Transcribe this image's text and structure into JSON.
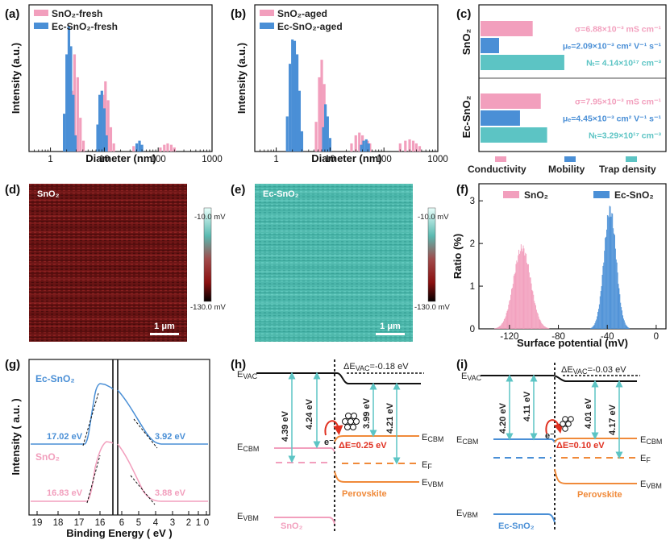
{
  "panels": {
    "a": {
      "letter": "(a)"
    },
    "b": {
      "letter": "(b)"
    },
    "c": {
      "letter": "(c)"
    },
    "d": {
      "letter": "(d)",
      "label": "SnO₂",
      "cbar_top": "-10.0 mV",
      "cbar_bottom": "-130.0 mV",
      "scalebar": "1 μm"
    },
    "e": {
      "letter": "(e)",
      "label": "Ec-SnO₂",
      "cbar_top": "-10.0 mV",
      "cbar_bottom": "-130.0 mV",
      "scalebar": "1 μm"
    },
    "f": {
      "letter": "(f)"
    },
    "g": {
      "letter": "(g)"
    },
    "h": {
      "letter": "(h)"
    },
    "i": {
      "letter": "(i)"
    }
  },
  "colors": {
    "pink": "#f29fbd",
    "blue": "#4a8fd6",
    "teal": "#5cc4c4",
    "orange": "#f08a3a",
    "black": "#111111"
  },
  "chart_data": [
    {
      "id": "a",
      "type": "bar",
      "xlabel": "Diameter (nm)",
      "ylabel": "Intensity (a.u.)",
      "xscale": "log",
      "xlim": [
        0.4,
        1000
      ],
      "xticks": [
        "1",
        "10",
        "100",
        "1000"
      ],
      "series": [
        {
          "name": "SnO₂-fresh",
          "color": "#f29fbd",
          "points": [
            [
              2.2,
              0.12
            ],
            [
              2.5,
              0.45
            ],
            [
              2.8,
              0.72
            ],
            [
              3.2,
              0.55
            ],
            [
              3.6,
              0.25
            ],
            [
              4.1,
              0.08
            ],
            [
              8.5,
              0.12
            ],
            [
              9.5,
              0.42
            ],
            [
              10.5,
              0.52
            ],
            [
              11.8,
              0.38
            ],
            [
              13.2,
              0.18
            ],
            [
              15,
              0.06
            ],
            [
              35,
              0.04
            ],
            [
              110,
              0.03
            ],
            [
              130,
              0.05
            ],
            [
              150,
              0.06
            ],
            [
              175,
              0.05
            ],
            [
              200,
              0.03
            ]
          ]
        },
        {
          "name": "Ec-SnO₂-fresh",
          "color": "#4a8fd6",
          "points": [
            [
              1.8,
              0.28
            ],
            [
              2.0,
              0.72
            ],
            [
              2.2,
              0.93
            ],
            [
              2.4,
              0.78
            ],
            [
              2.65,
              0.42
            ],
            [
              2.9,
              0.12
            ],
            [
              7.5,
              0.2
            ],
            [
              8.2,
              0.42
            ],
            [
              9.0,
              0.45
            ],
            [
              10,
              0.32
            ],
            [
              11,
              0.12
            ],
            [
              40,
              0.06
            ],
            [
              45,
              0.08
            ],
            [
              50,
              0.05
            ]
          ]
        }
      ]
    },
    {
      "id": "b",
      "type": "bar",
      "xlabel": "Diameter (nm)",
      "ylabel": "Intensity (a.u.)",
      "xscale": "log",
      "xlim": [
        0.4,
        1000
      ],
      "xticks": [
        "1",
        "10",
        "100",
        "1000"
      ],
      "series": [
        {
          "name": "SnO₂-aged",
          "color": "#f29fbd",
          "points": [
            [
              5.5,
              0.22
            ],
            [
              6.3,
              0.55
            ],
            [
              7.0,
              0.68
            ],
            [
              7.8,
              0.5
            ],
            [
              8.8,
              0.22
            ],
            [
              10,
              0.06
            ],
            [
              25,
              0.06
            ],
            [
              30,
              0.12
            ],
            [
              35,
              0.14
            ],
            [
              40,
              0.12
            ],
            [
              50,
              0.08
            ],
            [
              55,
              0.06
            ],
            [
              200,
              0.06
            ],
            [
              250,
              0.08
            ],
            [
              300,
              0.09
            ],
            [
              350,
              0.08
            ],
            [
              400,
              0.06
            ],
            [
              460,
              0.04
            ]
          ]
        },
        {
          "name": "Ec-SnO₂-aged",
          "color": "#4a8fd6",
          "points": [
            [
              1.6,
              0.26
            ],
            [
              1.8,
              0.65
            ],
            [
              2.0,
              0.83
            ],
            [
              2.2,
              0.82
            ],
            [
              2.45,
              0.72
            ],
            [
              2.7,
              0.45
            ],
            [
              3.0,
              0.15
            ],
            [
              7.5,
              0.18
            ],
            [
              8.2,
              0.35
            ],
            [
              9.0,
              0.26
            ],
            [
              10,
              0.1
            ],
            [
              38,
              0.05
            ],
            [
              42,
              0.08
            ],
            [
              47,
              0.09
            ],
            [
              52,
              0.06
            ]
          ]
        }
      ]
    },
    {
      "id": "c",
      "type": "bar",
      "orientation": "horizontal",
      "groups": [
        "SnO₂",
        "Ec-SnO₂"
      ],
      "metrics": [
        "Conductivity",
        "Mobility",
        "Trap density"
      ],
      "series": [
        {
          "name": "Conductivity",
          "color": "#f29fbd",
          "values": [
            6.88,
            7.95
          ],
          "labels": [
            "σ=6.88×10⁻³ mS cm⁻¹",
            "σ=7.95×10⁻³ mS cm⁻¹"
          ]
        },
        {
          "name": "Mobility",
          "color": "#4a8fd6",
          "values": [
            2.09,
            4.45
          ],
          "labels": [
            "μₑ=2.09×10⁻³ cm² V⁻¹ s⁻¹",
            "μₑ=4.45×10⁻³ cm² V⁻¹ s⁻¹"
          ]
        },
        {
          "name": "Trap density",
          "color": "#5cc4c4",
          "values": [
            4.14,
            3.29
          ],
          "labels": [
            "Nₜ= 4.14×10¹⁷ cm⁻³",
            "Nₜ=3.29×10¹⁷ cm⁻³"
          ]
        }
      ]
    },
    {
      "id": "f",
      "type": "bar",
      "xlabel": "Surface potential (mV)",
      "ylabel": "Ratio (%)",
      "xlim": [
        -145,
        8
      ],
      "ylim": [
        0,
        3.4
      ],
      "xticks": [
        "-120",
        "-80",
        "-40",
        "0"
      ],
      "yticks": [
        "0",
        "1",
        "2",
        "3"
      ],
      "series": [
        {
          "name": "SnO₂",
          "color": "#f29fbd",
          "center": -110,
          "sigma": 7,
          "peak": 1.9
        },
        {
          "name": "Ec-SnO₂",
          "color": "#4a8fd6",
          "center": -38,
          "sigma": 5,
          "peak": 2.8
        }
      ]
    },
    {
      "id": "g",
      "type": "line",
      "xlabel": "Binding Energy ( eV )",
      "ylabel": "Intensity ( a.u. )",
      "xticks": [
        "19",
        "18",
        "17",
        "16",
        "6",
        "5",
        "4",
        "3",
        "2",
        "1",
        "0"
      ],
      "series": [
        {
          "name": "Ec-SnO₂",
          "color": "#4a8fd6",
          "annotations": [
            "17.02 eV",
            "3.92 eV"
          ]
        },
        {
          "name": "SnO₂",
          "color": "#f29fbd",
          "annotations": [
            "16.83 eV",
            "3.88 eV"
          ]
        }
      ]
    }
  ],
  "diagram_h": {
    "dE_vac": "ΔE",
    "dE_vac_sub": "VAC",
    "dE_vac_val": "=-0.18 eV",
    "evac": "E",
    "evac_sub": "VAC",
    "ecbm": "E",
    "ecbm_sub": "CBM",
    "evbm": "E",
    "evbm_sub": "VBM",
    "ecbm_r": "E",
    "ecbm_r_sub": "CBM",
    "ef": "E",
    "ef_sub": "F",
    "evbm_r": "E",
    "evbm_r_sub": "VBM",
    "v1": "4.39 eV",
    "v2": "4.24 eV",
    "v3": "3.99 eV",
    "v4": "4.21 eV",
    "dE": "ΔE=0.25 eV",
    "electron": "e⁻",
    "perov": "Perovskite",
    "material": "SnO₂"
  },
  "diagram_i": {
    "dE_vac": "ΔE",
    "dE_vac_sub": "VAC",
    "dE_vac_val": "=-0.03 eV",
    "evac": "E",
    "evac_sub": "VAC",
    "ecbm": "E",
    "ecbm_sub": "CBM",
    "evbm": "E",
    "evbm_sub": "VBM",
    "ecbm_r": "E",
    "ecbm_r_sub": "CBM",
    "ef": "E",
    "ef_sub": "F",
    "evbm_r": "E",
    "evbm_r_sub": "VBM",
    "v1": "4.20 eV",
    "v2": "4.11 eV",
    "v3": "4.01 eV",
    "v4": "4.17 eV",
    "dE": "ΔE=0.10 eV",
    "electron": "e⁻",
    "perov": "Perovskite",
    "material": "Ec-SnO₂"
  }
}
